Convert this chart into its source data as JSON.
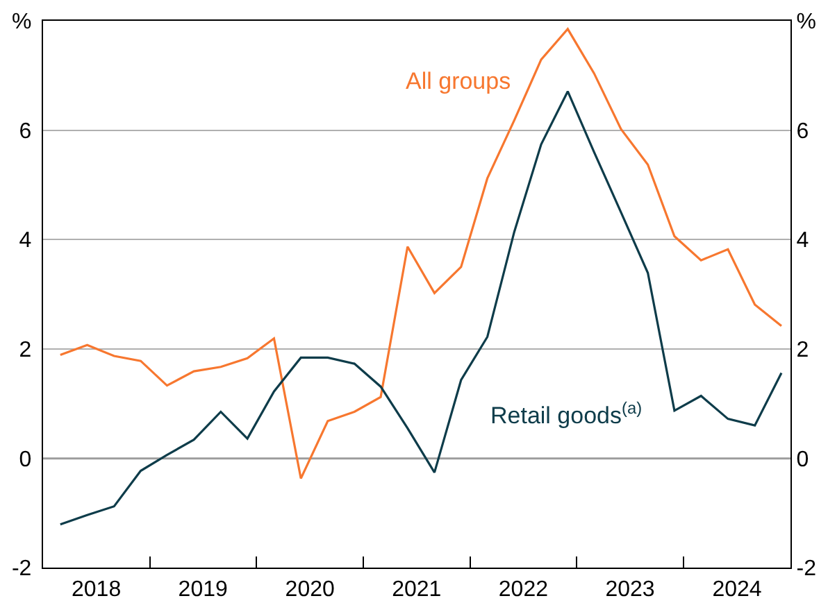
{
  "chart_data": {
    "type": "line",
    "x": [
      "2018-03",
      "2018-06",
      "2018-09",
      "2018-12",
      "2019-03",
      "2019-06",
      "2019-09",
      "2019-12",
      "2020-03",
      "2020-06",
      "2020-09",
      "2020-12",
      "2021-03",
      "2021-06",
      "2021-09",
      "2021-12",
      "2022-03",
      "2022-06",
      "2022-09",
      "2022-12",
      "2023-03",
      "2023-06",
      "2023-09",
      "2023-12",
      "2024-03",
      "2024-06",
      "2024-09",
      "2024-12"
    ],
    "series": [
      {
        "name": "All groups",
        "color": "#f7772f",
        "values": [
          1.89,
          2.07,
          1.87,
          1.78,
          1.33,
          1.59,
          1.67,
          1.83,
          2.19,
          -0.37,
          0.68,
          0.85,
          1.12,
          3.87,
          3.02,
          3.5,
          5.12,
          6.18,
          7.29,
          7.85,
          7.04,
          6.02,
          5.37,
          4.06,
          3.62,
          3.82,
          2.81,
          2.42
        ]
      },
      {
        "name": "Retail goods$^{(a)}$",
        "color": "#0e3c4a",
        "values": [
          -1.21,
          -1.04,
          -0.88,
          -0.23,
          0.06,
          0.34,
          0.85,
          0.36,
          1.22,
          1.84,
          1.84,
          1.73,
          1.31,
          0.55,
          -0.26,
          1.43,
          2.22,
          4.14,
          5.74,
          6.71,
          5.6,
          4.5,
          3.39,
          0.87,
          1.14,
          0.72,
          0.6,
          1.56
        ]
      }
    ],
    "xlim": [
      "2018-01-01",
      "2025-01-01"
    ],
    "xticks": [
      {
        "value": "2018-07-02",
        "label": "2018"
      },
      {
        "value": "2019-07-02",
        "label": "2019"
      },
      {
        "value": "2020-07-02",
        "label": "2020"
      },
      {
        "value": "2021-07-02",
        "label": "2021"
      },
      {
        "value": "2022-07-02",
        "label": "2022"
      },
      {
        "value": "2023-07-02",
        "label": "2023"
      },
      {
        "value": "2024-07-02",
        "label": "2024"
      },
      {
        "value": "2019-01-01",
        "label": null
      },
      {
        "value": "2020-01-01",
        "label": null
      },
      {
        "value": "2021-01-01",
        "label": null
      },
      {
        "value": "2022-01-01",
        "label": null
      },
      {
        "value": "2023-01-01",
        "label": null
      },
      {
        "value": "2024-01-01",
        "label": null
      }
    ],
    "ylim": [
      -2,
      8
    ],
    "yticks": [
      -2,
      0,
      2,
      4,
      6,
      {
        "value": 8,
        "label": "%"
      }
    ],
    "y2lim": [
      -2,
      8
    ],
    "y2ticks": [
      -2,
      0,
      2,
      4,
      6,
      {
        "value": 8,
        "label": "%"
      }
    ],
    "ref_lines": [
      {
        "axis": "y",
        "value": 0,
        "color": "#000000"
      }
    ],
    "grid": "y",
    "legend": false,
    "line_style": "solid",
    "marker": "none"
  }
}
